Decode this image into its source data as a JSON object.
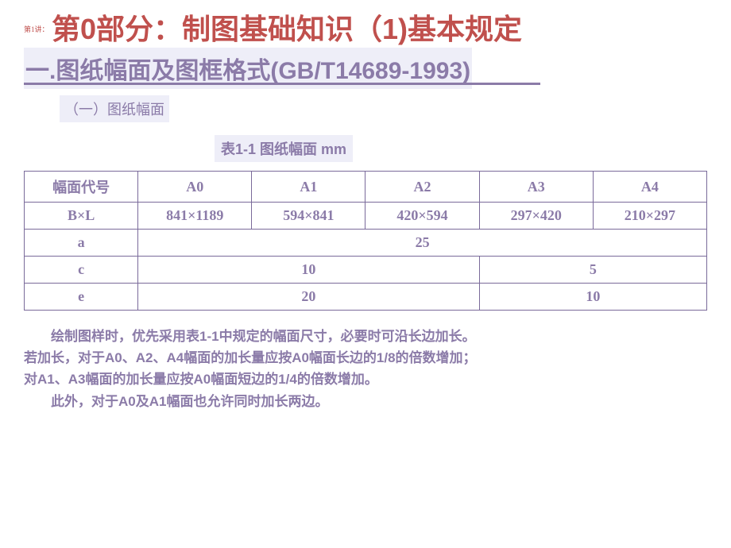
{
  "lecture_label": "第1讲：",
  "main_title": "第0部分：制图基础知识（1)基本规定",
  "section_title": "一.图纸幅面及图框格式(GB/T14689-1993)",
  "subsection_title": "（一）图纸幅面",
  "table_caption": "表1-1   图纸幅面       mm",
  "table": {
    "header_row": [
      "幅面代号",
      "A0",
      "A1",
      "A2",
      "A3",
      "A4"
    ],
    "bxl_row": [
      "B×L",
      "841×1189",
      "594×841",
      "420×594",
      "297×420",
      "210×297"
    ],
    "a_row": {
      "label": "a",
      "value": "25"
    },
    "c_row": {
      "label": "c",
      "value1": "10",
      "value2": "5"
    },
    "e_row": {
      "label": "e",
      "value1": "20",
      "value2": "10"
    }
  },
  "explanation": {
    "line1": "绘制图样时，优先采用表1-1中规定的幅面尺寸，必要时可沿长边加长。",
    "line2": "若加长，对于A0、A2、A4幅面的加长量应按A0幅面长边的1/8的倍数增加；",
    "line3": "对A1、A3幅面的加长量应按A0幅面短边的1/4的倍数增加。",
    "line4": "此外，对于A0及A1幅面也允许同时加长两边。"
  },
  "colors": {
    "title_red": "#c0504d",
    "purple": "#8b7ba8",
    "highlight_bg": "#eeeef8",
    "border": "#7a6a9a"
  }
}
